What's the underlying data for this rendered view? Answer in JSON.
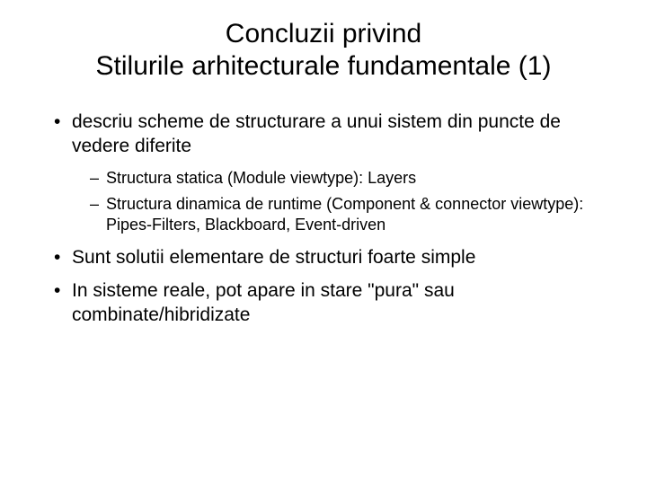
{
  "title_line1": "Concluzii privind",
  "title_line2": "Stilurile arhitecturale fundamentale (1)",
  "bullets": [
    {
      "text": "descriu scheme de structurare a unui sistem din puncte de vedere diferite",
      "sub": [
        "Structura statica (Module viewtype): Layers",
        "Structura dinamica de runtime (Component & connector viewtype): Pipes-Filters, Blackboard, Event-driven"
      ]
    },
    {
      "text": "Sunt solutii elementare de structuri foarte simple",
      "sub": []
    },
    {
      "text": "In sisteme reale, pot apare in stare \"pura\" sau combinate/hibridizate",
      "sub": []
    }
  ],
  "colors": {
    "background": "#ffffff",
    "text": "#000000"
  },
  "typography": {
    "title_fontsize": 30,
    "level1_fontsize": 21,
    "level2_fontsize": 18,
    "font_family": "Arial"
  }
}
